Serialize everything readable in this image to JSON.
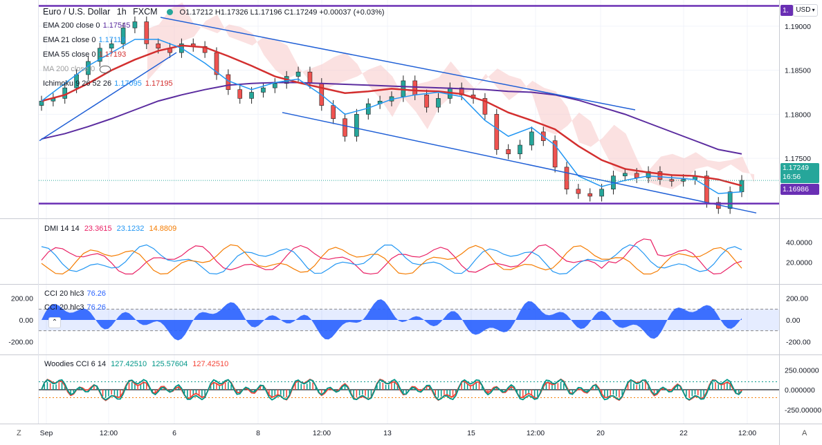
{
  "header": {
    "symbol": "Euro / U.S. Dollar",
    "interval": "1h",
    "source": "FXCM",
    "ohlc": "O1.17212 H1.17326 L1.17196 C1.17249 +0.00037 (+0.03%)"
  },
  "indicators": [
    {
      "name": "EMA 200 close 0",
      "value": "1.17545",
      "color": "#5b2c9f"
    },
    {
      "name": "EMA 21 close 0",
      "value": "1.17119",
      "color": "#2196f3"
    },
    {
      "name": "EMA 55 close 0",
      "value": "1.17193",
      "color": "#d32f2f"
    },
    {
      "name": "MA 200 close 0",
      "value": "",
      "color": "#9e9e9e"
    },
    {
      "name": "Ichimoku 9 26 52 26",
      "value": "1.17095",
      "value2": "1.17195",
      "color": "#2196f3",
      "color2": "#d32f2f"
    }
  ],
  "currency_button": "USD",
  "price_axis": {
    "ticks": [
      "1.19000",
      "1.18500",
      "1.18000",
      "1.17500"
    ],
    "last_price": "1.17249",
    "countdown": "16:56",
    "level_price": "1.16986",
    "top_marker": "1."
  },
  "time_axis": {
    "ticks": [
      "Sep",
      "12:00",
      "6",
      "8",
      "12:00",
      "13",
      "15",
      "12:00",
      "20",
      "22",
      "12:00"
    ]
  },
  "pane_labels": {
    "dmi": {
      "name": "DMI 14 14",
      "values": [
        "23.3615",
        "23.1232",
        "14.8809"
      ],
      "colors": [
        "#e91e63",
        "#2196f3",
        "#f57c00"
      ]
    },
    "cci1": {
      "name": "CCI 20 hlc3",
      "value": "76.26"
    },
    "cci2": {
      "name": "CCI 20 hlc3",
      "value": "76.26"
    },
    "woodies": {
      "name": "Woodies CCI 6 14",
      "values": [
        "127.42510",
        "125.57604",
        "127.42510"
      ],
      "colors": [
        "#009688",
        "#009688",
        "#f44336"
      ]
    }
  },
  "pane_axes": {
    "dmi": [
      "40.0000",
      "20.0000"
    ],
    "cci": [
      "200.00",
      "0.00",
      "-200.00"
    ],
    "woodies": [
      "250.00000",
      "0.000000",
      "-250.00000"
    ]
  },
  "bottom_buttons": {
    "left": "Z",
    "right": "A"
  },
  "colors": {
    "ema200": "#5b2c9f",
    "ema55": "#d32f2f",
    "ema21": "#2196f3",
    "channel": "#1f5fd6",
    "level": "#6a2fb4",
    "cci": "#2962ff",
    "cloud": "#f8c8c8"
  },
  "chart_data": {
    "type": "line",
    "title": "Euro / U.S. Dollar",
    "xlabel": "",
    "ylabel": "",
    "ylim": [
      1.1685,
      1.1925
    ],
    "x_ticks": [
      "Sep",
      "12:00",
      "6",
      "8",
      "12:00",
      "13",
      "15",
      "12:00",
      "20",
      "22",
      "12:00"
    ],
    "close": [
      1.1815,
      1.1818,
      1.183,
      1.1845,
      1.186,
      1.1875,
      1.188,
      1.1898,
      1.1905,
      1.188,
      1.1875,
      1.187,
      1.188,
      1.1877,
      1.187,
      1.1845,
      1.1828,
      1.1818,
      1.1825,
      1.183,
      1.1835,
      1.1843,
      1.1848,
      1.1835,
      1.181,
      1.1795,
      1.1775,
      1.18,
      1.1812,
      1.1815,
      1.182,
      1.1838,
      1.1822,
      1.1808,
      1.1818,
      1.183,
      1.1822,
      1.1818,
      1.18,
      1.176,
      1.1755,
      1.1765,
      1.178,
      1.177,
      1.174,
      1.1715,
      1.171,
      1.1707,
      1.1715,
      1.173,
      1.1733,
      1.1728,
      1.1735,
      1.1726,
      1.1724,
      1.1726,
      1.173,
      1.17,
      1.1693,
      1.1712,
      1.1725
    ],
    "series": [
      {
        "name": "EMA 200 close 0",
        "values": [
          1.1772,
          1.1778,
          1.1786,
          1.1795,
          1.1805,
          1.1815,
          1.1822,
          1.1828,
          1.1833,
          1.1835,
          1.1836,
          1.1836,
          1.1835,
          1.1834,
          1.1833,
          1.1832,
          1.1831,
          1.183,
          1.1829,
          1.1828,
          1.1826,
          1.1825,
          1.1822,
          1.1816,
          1.1808,
          1.18,
          1.179,
          1.178,
          1.177,
          1.176,
          1.1755
        ]
      },
      {
        "name": "EMA 55 close 0",
        "values": [
          1.1815,
          1.1822,
          1.1835,
          1.185,
          1.1862,
          1.1872,
          1.1878,
          1.1876,
          1.1866,
          1.1855,
          1.1843,
          1.1836,
          1.183,
          1.1824,
          1.1826,
          1.1829,
          1.1827,
          1.1826,
          1.1823,
          1.1815,
          1.1802,
          1.1793,
          1.1783,
          1.1764,
          1.1748,
          1.1738,
          1.1734,
          1.1731,
          1.173,
          1.1726,
          1.1719
        ]
      },
      {
        "name": "EMA 21 close 0",
        "values": [
          1.1815,
          1.1835,
          1.1855,
          1.187,
          1.1885,
          1.1885,
          1.1875,
          1.1858,
          1.1838,
          1.1828,
          1.1836,
          1.184,
          1.1822,
          1.18,
          1.1807,
          1.1817,
          1.1822,
          1.1825,
          1.182,
          1.1793,
          1.1775,
          1.1785,
          1.1765,
          1.173,
          1.1718,
          1.1725,
          1.173,
          1.1728,
          1.1726,
          1.171,
          1.1712
        ]
      }
    ],
    "levels": {
      "top": 1.1923,
      "support": 1.16986
    },
    "cci_range": [
      -300,
      300
    ],
    "dmi_range": [
      0,
      60
    ],
    "woodies_range": [
      -400,
      400
    ]
  }
}
